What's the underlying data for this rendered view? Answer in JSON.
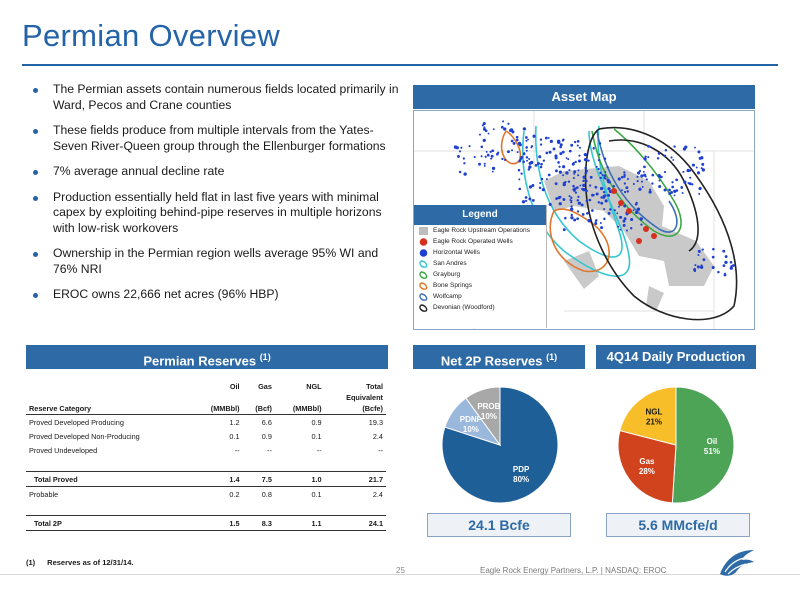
{
  "title": "Permian Overview",
  "bullets": [
    "The Permian assets contain numerous fields located primarily in Ward, Pecos and Crane counties",
    "These fields produce from multiple intervals from the Yates-Seven River-Queen group through the Ellenburger formations",
    "7% average annual decline rate",
    "Production essentially held flat in last five years with minimal capex by exploiting behind-pipe reserves in multiple horizons with low-risk workovers",
    "Ownership in the Permian region wells average 95% WI and 76% NRI",
    "EROC owns 22,666 net acres (96% HBP)"
  ],
  "asset_map": {
    "header": "Asset Map",
    "legend_header": "Legend",
    "legend": [
      {
        "label": "Eagle Rock Upstream Operations",
        "icon": "gray-square",
        "color": "#bdbdbd"
      },
      {
        "label": "Eagle Rock Operated Wells",
        "icon": "red-circle",
        "color": "#d7301f"
      },
      {
        "label": "Horizontal Wells",
        "icon": "blue-circle",
        "color": "#1f3fd1"
      },
      {
        "label": "San Andres",
        "icon": "outline",
        "color": "#37c5d0"
      },
      {
        "label": "Grayburg",
        "icon": "outline",
        "color": "#39a845"
      },
      {
        "label": "Bone Springs",
        "icon": "outline",
        "color": "#e0762b"
      },
      {
        "label": "Wolfcamp",
        "icon": "outline",
        "color": "#3d6fb6"
      },
      {
        "label": "Devonian (Woodford)",
        "icon": "outline",
        "color": "#222222"
      }
    ]
  },
  "reserves": {
    "header": "Permian Reserves",
    "header_note": "(1)",
    "columns": {
      "category": "Reserve Category",
      "oil": [
        "Oil",
        "(MMBbl)"
      ],
      "gas": [
        "Gas",
        "(Bcf)"
      ],
      "ngl": [
        "NGL",
        "(MMBbl)"
      ],
      "total": [
        "Total",
        "Equivalent",
        "(Bcfe)"
      ]
    },
    "rows": [
      {
        "category": "Proved Developed Producing",
        "oil": "1.2",
        "gas": "6.6",
        "ngl": "0.9",
        "total": "19.3"
      },
      {
        "category": "Proved Developed Non-Producing",
        "oil": "0.1",
        "gas": "0.9",
        "ngl": "0.1",
        "total": "2.4"
      },
      {
        "category": "Proved Undeveloped",
        "oil": "--",
        "gas": "--",
        "ngl": "--",
        "total": "--"
      }
    ],
    "total_proved": {
      "category": "Total Proved",
      "oil": "1.4",
      "gas": "7.5",
      "ngl": "1.0",
      "total": "21.7"
    },
    "probable": {
      "category": "Probable",
      "oil": "0.2",
      "gas": "0.8",
      "ngl": "0.1",
      "total": "2.4"
    },
    "total_2p": {
      "category": "Total 2P",
      "oil": "1.5",
      "gas": "8.3",
      "ngl": "1.1",
      "total": "24.1"
    }
  },
  "net2p": {
    "header": "Net 2P Reserves",
    "header_note": "(1)",
    "metric": "24.1 Bcfe"
  },
  "production": {
    "header": "4Q14 Daily Production",
    "metric": "5.6 MMcfe/d"
  },
  "chart_data": [
    {
      "type": "pie",
      "categories": [
        "PDP",
        "PDNP",
        "PROB"
      ],
      "values": [
        80,
        10,
        10
      ],
      "labels": [
        "80%",
        "10%",
        "10%"
      ],
      "colors": [
        "#1f5f98",
        "#9ab8dc",
        "#a8a8a8"
      ]
    },
    {
      "type": "pie",
      "categories": [
        "Oil",
        "Gas",
        "NGL"
      ],
      "values": [
        51,
        28,
        21
      ],
      "labels": [
        "51%",
        "28%",
        "21%"
      ],
      "colors": [
        "#4ea456",
        "#d0431c",
        "#f7be2a"
      ]
    }
  ],
  "footnote": {
    "num": "(1)",
    "text": "Reserves as of 12/31/14."
  },
  "footer": {
    "page": "25",
    "company": "Eagle Rock Energy Partners, L.P.  |  NASDAQ: EROC"
  }
}
